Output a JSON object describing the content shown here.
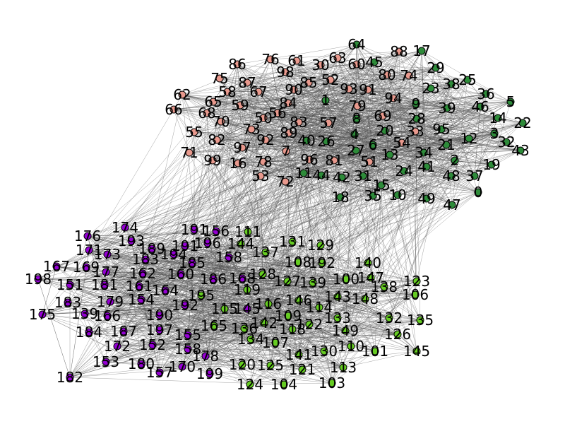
{
  "graph": {
    "colors": {
      "salmon": "#e8998d",
      "dark_green": "#2e8b3a",
      "light_green": "#66cc22",
      "purple": "#9400d3"
    },
    "edges_per_node": 10,
    "cross_edges_per_node": 2
  }
}
